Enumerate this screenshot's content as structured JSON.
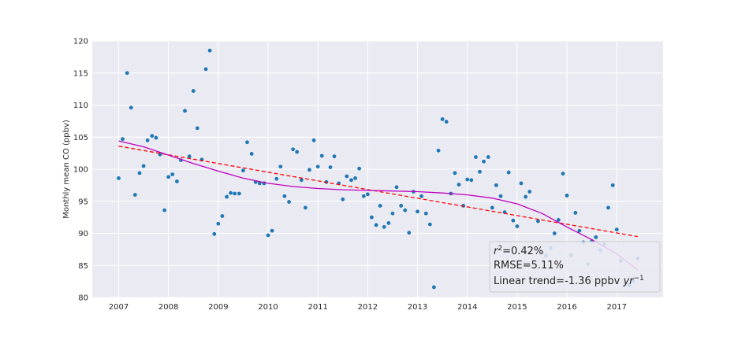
{
  "chart_data": {
    "type": "scatter",
    "title": "",
    "xlabel": "",
    "ylabel": "Monthly mean CO (ppbv)",
    "xlim": [
      2006.47,
      2017.93
    ],
    "ylim": [
      80,
      120
    ],
    "xticks": [
      "2007",
      "2008",
      "2009",
      "2010",
      "2011",
      "2012",
      "2013",
      "2014",
      "2015",
      "2016",
      "2017"
    ],
    "yticks": [
      "80",
      "85",
      "90",
      "95",
      "100",
      "105",
      "110",
      "115",
      "120"
    ],
    "grid": true,
    "colors": {
      "background": "#eaeaf2",
      "grid": "#ffffff",
      "points": "#1f77b4",
      "trend_line": "#ff0000",
      "smooth_curve": "#bf00bf",
      "annotation_box": "#eaeaf2"
    },
    "series": [
      {
        "kind": "points",
        "x": [
          2007.0,
          2007.08,
          2007.17,
          2007.25,
          2007.33,
          2007.42,
          2007.5,
          2007.58,
          2007.67,
          2007.75,
          2007.83,
          2007.92,
          2008.0,
          2008.08,
          2008.17,
          2008.25,
          2008.33,
          2008.42,
          2008.5,
          2008.58,
          2008.67,
          2008.75,
          2008.83,
          2008.92,
          2009.0,
          2009.08,
          2009.17,
          2009.25,
          2009.33,
          2009.42,
          2009.5,
          2009.58,
          2009.67,
          2009.75,
          2009.83,
          2009.92,
          2010.0,
          2010.08,
          2010.17,
          2010.25,
          2010.33,
          2010.42,
          2010.5,
          2010.58,
          2010.67,
          2010.75,
          2010.83,
          2010.92,
          2011.0,
          2011.08,
          2011.17,
          2011.25,
          2011.33,
          2011.42,
          2011.5,
          2011.58,
          2011.67,
          2011.75,
          2011.83,
          2011.92,
          2012.0,
          2012.08,
          2012.17,
          2012.25,
          2012.33,
          2012.42,
          2012.5,
          2012.58,
          2012.67,
          2012.75,
          2012.83,
          2012.92,
          2013.0,
          2013.08,
          2013.17,
          2013.25,
          2013.33,
          2013.42,
          2013.5,
          2013.58,
          2013.67,
          2013.75,
          2013.83,
          2013.92,
          2014.0,
          2014.08,
          2014.17,
          2014.25,
          2014.33,
          2014.42,
          2014.5,
          2014.58,
          2014.67,
          2014.75,
          2014.83,
          2014.92,
          2015.0,
          2015.08,
          2015.17,
          2015.25,
          2015.42,
          2015.5,
          2015.58,
          2015.67,
          2015.75,
          2015.83,
          2015.92,
          2016.0,
          2016.08,
          2016.17,
          2016.25,
          2016.33,
          2016.42,
          2016.5,
          2016.58,
          2016.67,
          2016.75,
          2016.83,
          2016.92,
          2017.0,
          2017.08,
          2017.17,
          2017.25,
          2017.33,
          2017.42
        ],
        "y": [
          98.6,
          104.7,
          115.0,
          109.6,
          96.0,
          99.4,
          100.5,
          104.5,
          105.2,
          104.9,
          102.3,
          93.6,
          98.8,
          99.2,
          98.1,
          101.4,
          109.1,
          102.0,
          112.2,
          106.4,
          101.5,
          115.6,
          118.5,
          89.9,
          91.5,
          92.7,
          95.7,
          96.3,
          96.2,
          96.2,
          99.8,
          104.2,
          102.4,
          98.0,
          97.8,
          97.8,
          89.7,
          90.4,
          98.5,
          100.4,
          95.8,
          94.9,
          103.1,
          102.7,
          98.3,
          94.0,
          99.9,
          104.5,
          100.4,
          102.1,
          98.0,
          100.3,
          102.0,
          97.8,
          95.3,
          98.9,
          98.3,
          98.6,
          100.1,
          95.8,
          96.1,
          92.5,
          91.3,
          94.3,
          91.0,
          91.6,
          93.1,
          97.2,
          94.3,
          93.6,
          90.1,
          96.5,
          93.4,
          95.8,
          93.1,
          91.4,
          81.6,
          102.9,
          107.8,
          107.4,
          96.2,
          99.4,
          97.6,
          94.3,
          98.4,
          98.3,
          101.9,
          99.6,
          101.2,
          101.9,
          94.0,
          97.5,
          95.8,
          93.3,
          99.5,
          92.0,
          91.1,
          97.8,
          95.7,
          96.5,
          91.9,
          87.0,
          86.5,
          87.7,
          90.0,
          92.1,
          99.3,
          95.9,
          86.6,
          93.2,
          90.4,
          88.6,
          85.2,
          88.8,
          89.4,
          87.4,
          88.3,
          94.0,
          97.5,
          90.6,
          85.7,
          82.1,
          81.9,
          82.6,
          86.1
        ]
      },
      {
        "kind": "trend",
        "x": [
          2007.0,
          2017.42
        ],
        "y": [
          103.6,
          89.5
        ]
      },
      {
        "kind": "smooth",
        "x": [
          2007.0,
          2007.5,
          2008.0,
          2008.5,
          2009.0,
          2009.5,
          2010.0,
          2010.5,
          2011.0,
          2011.5,
          2012.0,
          2012.5,
          2013.0,
          2013.5,
          2014.0,
          2014.5,
          2015.0,
          2015.5,
          2016.0,
          2016.5,
          2017.0,
          2017.2,
          2017.42
        ],
        "y": [
          104.4,
          103.5,
          102.2,
          100.9,
          99.7,
          98.6,
          97.8,
          97.3,
          97.0,
          96.8,
          96.7,
          96.6,
          96.5,
          96.3,
          96.0,
          95.5,
          94.6,
          93.1,
          91.0,
          89.0,
          86.8,
          85.6,
          84.3
        ]
      }
    ],
    "annotation": {
      "r2_prefix": "r",
      "r2_exp": "2",
      "r2_value": "=0.42%",
      "rmse": "RMSE=5.11%",
      "trend_text": "Linear trend=-1.36 ppbv ",
      "trend_unit": "yr",
      "trend_exp": "−1"
    }
  }
}
